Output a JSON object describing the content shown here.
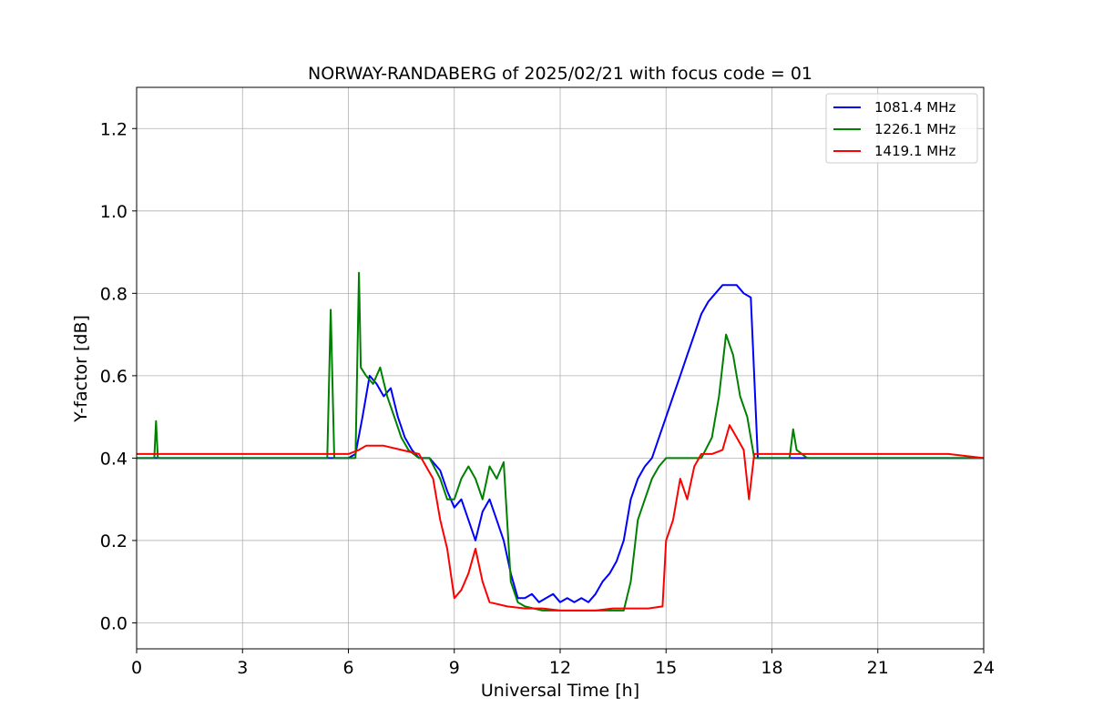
{
  "chart_data": {
    "type": "line",
    "title": "NORWAY-RANDABERG of 2025/02/21 with focus code = 01",
    "xlabel": "Universal Time [h]",
    "ylabel": "Y-factor [dB]",
    "xlim": [
      0,
      24
    ],
    "ylim": [
      -0.063,
      1.3
    ],
    "xticks": [
      0,
      3,
      6,
      9,
      12,
      15,
      18,
      21,
      24
    ],
    "xtick_labels": [
      "0",
      "3",
      "6",
      "9",
      "12",
      "15",
      "18",
      "21",
      "24"
    ],
    "yticks": [
      0.0,
      0.2,
      0.4,
      0.6,
      0.8,
      1.0,
      1.2
    ],
    "ytick_labels": [
      "0.0",
      "0.2",
      "0.4",
      "0.6",
      "0.8",
      "1.0",
      "1.2"
    ],
    "grid": true,
    "legend_position": "top-right",
    "series": [
      {
        "name": "1081.4 MHz",
        "color": "#0000ff",
        "x": [
          0,
          1,
          2,
          3,
          4,
          5,
          6,
          6.2,
          6.4,
          6.6,
          6.8,
          7.0,
          7.2,
          7.4,
          7.6,
          7.8,
          8.0,
          8.3,
          8.6,
          8.8,
          9.0,
          9.2,
          9.4,
          9.6,
          9.8,
          10.0,
          10.2,
          10.4,
          10.6,
          10.8,
          11.0,
          11.2,
          11.4,
          11.6,
          11.8,
          12.0,
          12.2,
          12.4,
          12.6,
          12.8,
          13.0,
          13.2,
          13.4,
          13.6,
          13.8,
          14.0,
          14.2,
          14.4,
          14.6,
          14.8,
          15.0,
          15.2,
          15.4,
          15.6,
          15.8,
          16.0,
          16.2,
          16.4,
          16.6,
          16.8,
          17.0,
          17.2,
          17.4,
          17.6,
          18.0,
          19.0,
          20.0,
          21.0,
          22.0,
          23.0,
          24.0
        ],
        "values": [
          0.4,
          0.4,
          0.4,
          0.4,
          0.4,
          0.4,
          0.4,
          0.41,
          0.5,
          0.6,
          0.58,
          0.55,
          0.57,
          0.5,
          0.45,
          0.42,
          0.4,
          0.4,
          0.37,
          0.32,
          0.28,
          0.3,
          0.25,
          0.2,
          0.27,
          0.3,
          0.25,
          0.2,
          0.12,
          0.06,
          0.06,
          0.07,
          0.05,
          0.06,
          0.07,
          0.05,
          0.06,
          0.05,
          0.06,
          0.05,
          0.07,
          0.1,
          0.12,
          0.15,
          0.2,
          0.3,
          0.35,
          0.38,
          0.4,
          0.45,
          0.5,
          0.55,
          0.6,
          0.65,
          0.7,
          0.75,
          0.78,
          0.8,
          0.82,
          0.82,
          0.82,
          0.8,
          0.79,
          0.4,
          0.4,
          0.4,
          0.4,
          0.4,
          0.4,
          0.4,
          0.4
        ]
      },
      {
        "name": "1226.1 MHz",
        "color": "#008000",
        "x": [
          0,
          0.5,
          0.55,
          0.6,
          1,
          2,
          3,
          4,
          5,
          5.4,
          5.5,
          5.6,
          6,
          6.2,
          6.3,
          6.35,
          6.5,
          6.7,
          6.9,
          7.1,
          7.3,
          7.5,
          7.7,
          8.0,
          8.3,
          8.6,
          8.8,
          9.0,
          9.2,
          9.4,
          9.6,
          9.8,
          10.0,
          10.2,
          10.4,
          10.6,
          10.8,
          11.0,
          11.5,
          12.0,
          12.5,
          13.0,
          13.5,
          13.8,
          14.0,
          14.2,
          14.4,
          14.6,
          14.8,
          15.0,
          15.3,
          15.6,
          16.0,
          16.3,
          16.5,
          16.7,
          16.9,
          17.1,
          17.3,
          17.5,
          18.0,
          18.5,
          18.6,
          18.7,
          19.0,
          20.0,
          21.0,
          22.0,
          23.0,
          24.0
        ],
        "values": [
          0.4,
          0.4,
          0.49,
          0.4,
          0.4,
          0.4,
          0.4,
          0.4,
          0.4,
          0.4,
          0.76,
          0.4,
          0.4,
          0.4,
          0.85,
          0.62,
          0.6,
          0.58,
          0.62,
          0.55,
          0.5,
          0.45,
          0.42,
          0.4,
          0.4,
          0.35,
          0.3,
          0.3,
          0.35,
          0.38,
          0.35,
          0.3,
          0.38,
          0.35,
          0.39,
          0.1,
          0.05,
          0.04,
          0.03,
          0.03,
          0.03,
          0.03,
          0.03,
          0.03,
          0.1,
          0.25,
          0.3,
          0.35,
          0.38,
          0.4,
          0.4,
          0.4,
          0.4,
          0.45,
          0.55,
          0.7,
          0.65,
          0.55,
          0.5,
          0.4,
          0.4,
          0.4,
          0.47,
          0.42,
          0.4,
          0.4,
          0.4,
          0.4,
          0.4,
          0.4
        ]
      },
      {
        "name": "1419.1 MHz",
        "color": "#ff0000",
        "x": [
          0,
          1,
          2,
          3,
          4,
          5,
          6,
          6.3,
          6.5,
          7.0,
          7.5,
          8.0,
          8.4,
          8.6,
          8.8,
          9.0,
          9.2,
          9.4,
          9.6,
          9.8,
          10.0,
          10.5,
          11.0,
          11.5,
          12.0,
          12.5,
          13.0,
          13.5,
          14.0,
          14.5,
          14.9,
          15.0,
          15.2,
          15.4,
          15.6,
          15.8,
          16.0,
          16.3,
          16.6,
          16.8,
          17.0,
          17.2,
          17.35,
          17.5,
          18.0,
          19.0,
          20.0,
          21.0,
          22.0,
          23.0,
          24.0
        ],
        "values": [
          0.41,
          0.41,
          0.41,
          0.41,
          0.41,
          0.41,
          0.41,
          0.42,
          0.43,
          0.43,
          0.42,
          0.41,
          0.35,
          0.25,
          0.18,
          0.06,
          0.08,
          0.12,
          0.18,
          0.1,
          0.05,
          0.04,
          0.035,
          0.035,
          0.03,
          0.03,
          0.03,
          0.035,
          0.035,
          0.035,
          0.04,
          0.2,
          0.25,
          0.35,
          0.3,
          0.38,
          0.41,
          0.41,
          0.42,
          0.48,
          0.45,
          0.42,
          0.3,
          0.41,
          0.41,
          0.41,
          0.41,
          0.41,
          0.41,
          0.41,
          0.4
        ]
      }
    ]
  }
}
